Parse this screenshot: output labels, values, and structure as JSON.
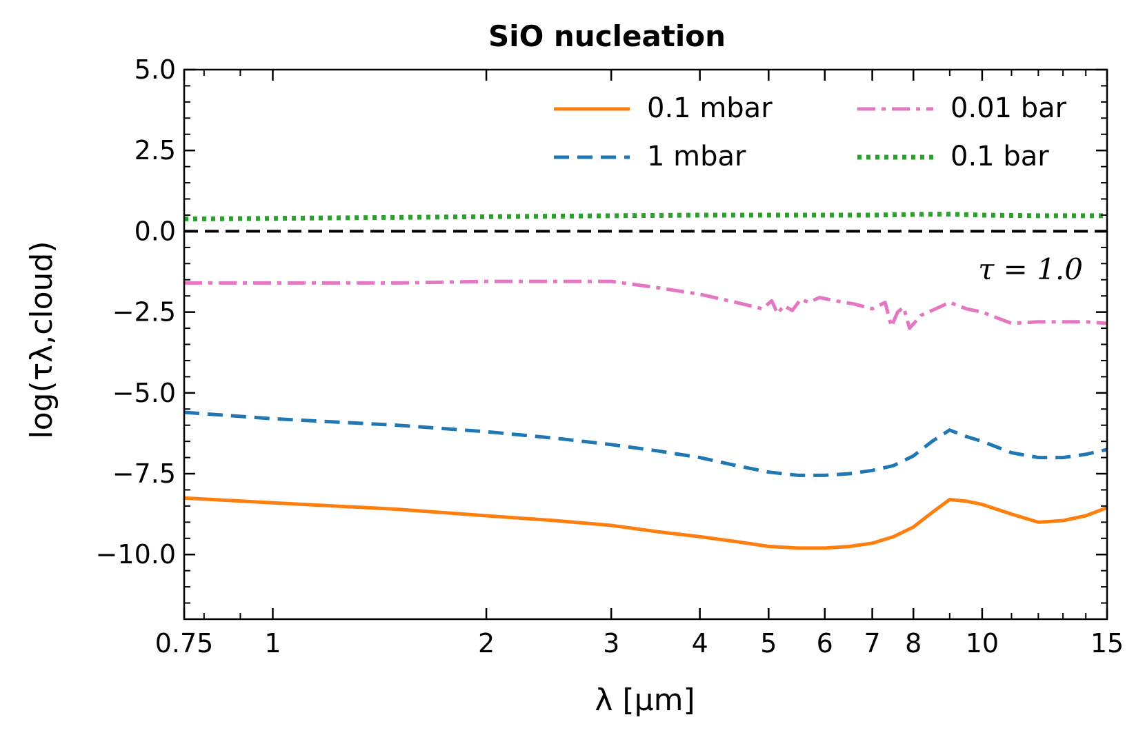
{
  "chart_data": {
    "type": "line",
    "title": "SiO nucleation",
    "xlabel": "λ [μm]",
    "ylabel": "log(τλ,cloud)",
    "xscale": "log",
    "xlim": [
      0.75,
      15
    ],
    "ylim": [
      -12,
      5
    ],
    "xticks": [
      {
        "value": 0.75,
        "label": "0.75"
      },
      {
        "value": 1,
        "label": "1"
      },
      {
        "value": 2,
        "label": "2"
      },
      {
        "value": 3,
        "label": "3"
      },
      {
        "value": 4,
        "label": "4"
      },
      {
        "value": 5,
        "label": "5"
      },
      {
        "value": 6,
        "label": "6"
      },
      {
        "value": 7,
        "label": "7"
      },
      {
        "value": 8,
        "label": "8"
      },
      {
        "value": 10,
        "label": "10"
      },
      {
        "value": 15,
        "label": "15"
      }
    ],
    "yticks": [
      {
        "value": 5,
        "label": "5.0"
      },
      {
        "value": 2.5,
        "label": "2.5"
      },
      {
        "value": 0,
        "label": "0.0"
      },
      {
        "value": -2.5,
        "label": "−2.5"
      },
      {
        "value": -5,
        "label": "−5.0"
      },
      {
        "value": -7.5,
        "label": "−7.5"
      },
      {
        "value": -10,
        "label": "−10.0"
      }
    ],
    "reference_line": {
      "y": 0,
      "color": "#000000",
      "style": "dashed",
      "label": "τ = 1.0"
    },
    "legend": {
      "placement": "top-right",
      "columns": 2
    },
    "series": [
      {
        "name": "0.1 mbar",
        "color": "#ff7f0e",
        "style": "solid",
        "x": [
          0.75,
          1,
          1.5,
          2,
          2.5,
          3,
          3.5,
          4,
          4.5,
          5,
          5.5,
          6,
          6.5,
          7,
          7.5,
          8,
          8.5,
          9,
          9.5,
          10,
          11,
          12,
          13,
          14,
          15
        ],
        "y": [
          -8.25,
          -8.4,
          -8.6,
          -8.8,
          -8.95,
          -9.1,
          -9.3,
          -9.45,
          -9.6,
          -9.75,
          -9.8,
          -9.8,
          -9.75,
          -9.65,
          -9.45,
          -9.15,
          -8.7,
          -8.3,
          -8.35,
          -8.45,
          -8.75,
          -9.0,
          -8.95,
          -8.8,
          -8.55
        ]
      },
      {
        "name": "1 mbar",
        "color": "#1f77b4",
        "style": "dashed",
        "x": [
          0.75,
          1,
          1.5,
          2,
          2.5,
          3,
          3.5,
          4,
          4.5,
          5,
          5.5,
          6,
          6.5,
          7,
          7.5,
          8,
          8.5,
          9,
          9.5,
          10,
          11,
          12,
          13,
          14,
          15
        ],
        "y": [
          -5.6,
          -5.8,
          -6.0,
          -6.2,
          -6.4,
          -6.6,
          -6.8,
          -7.0,
          -7.25,
          -7.45,
          -7.55,
          -7.55,
          -7.5,
          -7.4,
          -7.25,
          -6.95,
          -6.5,
          -6.15,
          -6.35,
          -6.5,
          -6.85,
          -7.0,
          -7.0,
          -6.9,
          -6.75
        ]
      },
      {
        "name": "0.01 bar",
        "color": "#e377c2",
        "style": "dashdot",
        "x": [
          0.75,
          1,
          1.5,
          2,
          2.5,
          3,
          3.5,
          4,
          4.5,
          4.9,
          5.05,
          5.15,
          5.25,
          5.4,
          5.55,
          5.7,
          5.9,
          6.2,
          6.6,
          7.0,
          7.3,
          7.45,
          7.6,
          7.75,
          7.9,
          8.2,
          8.6,
          9.0,
          9.5,
          10,
          11,
          12,
          13,
          14,
          15
        ],
        "y": [
          -1.6,
          -1.6,
          -1.6,
          -1.55,
          -1.55,
          -1.55,
          -1.75,
          -1.95,
          -2.2,
          -2.4,
          -2.15,
          -2.55,
          -2.3,
          -2.45,
          -2.1,
          -2.2,
          -2.05,
          -2.15,
          -2.25,
          -2.4,
          -2.2,
          -2.95,
          -2.5,
          -2.35,
          -3.0,
          -2.6,
          -2.4,
          -2.2,
          -2.4,
          -2.5,
          -2.85,
          -2.8,
          -2.8,
          -2.8,
          -2.85
        ]
      },
      {
        "name": "0.1 bar",
        "color": "#2ca02c",
        "style": "dotted",
        "x": [
          0.75,
          1,
          2,
          3,
          4,
          5,
          6,
          7,
          8,
          9,
          10,
          12,
          15
        ],
        "y": [
          0.38,
          0.4,
          0.45,
          0.48,
          0.5,
          0.5,
          0.5,
          0.5,
          0.52,
          0.53,
          0.5,
          0.48,
          0.48
        ]
      }
    ]
  }
}
